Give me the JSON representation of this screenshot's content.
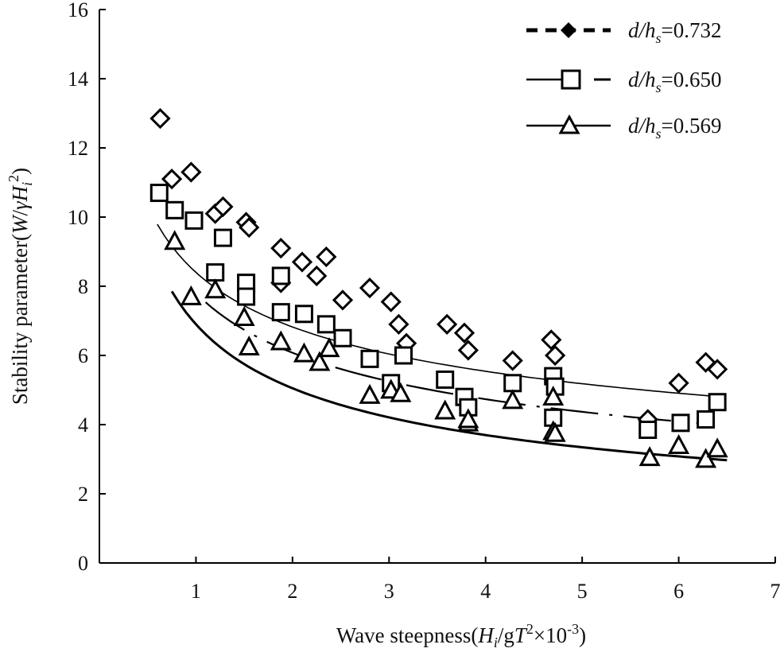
{
  "chart_data": {
    "type": "scatter",
    "xlabel": {
      "prefix": "Wave steepness(",
      "H": "H",
      "i": "i",
      "mid": "/g",
      "T": "T",
      "sq": "2",
      "times": "×10",
      "exp": "-3",
      "close": ")"
    },
    "ylabel": {
      "prefix": "Stability parameter(",
      "W": "W",
      "slash": "/",
      "gamma": "γ",
      "H": "H",
      "i": "i",
      "sq": "2",
      "close": ")"
    },
    "xlim": [
      0,
      7
    ],
    "ylim": [
      0,
      16
    ],
    "xticks": [
      "1",
      "2",
      "3",
      "4",
      "5",
      "6",
      "7"
    ],
    "yticks": [
      "0",
      "2",
      "4",
      "6",
      "8",
      "10",
      "12",
      "14",
      "16"
    ],
    "legend": [
      {
        "prefix": "d/h",
        "sub": "s",
        "value": "=0.732",
        "marker": "diamond",
        "line": "dashed-thick"
      },
      {
        "prefix": "d/h",
        "sub": "s",
        "value": "=0.650",
        "marker": "square",
        "line": "dash-gap"
      },
      {
        "prefix": "d/h",
        "sub": "s",
        "value": "=0.569",
        "marker": "triangle",
        "line": "solid"
      }
    ],
    "series": [
      {
        "name": "d/hs=0.732",
        "marker": "diamond",
        "points": [
          [
            0.63,
            12.85
          ],
          [
            0.75,
            11.1
          ],
          [
            0.95,
            11.3
          ],
          [
            1.2,
            10.1
          ],
          [
            1.28,
            10.3
          ],
          [
            1.52,
            9.85
          ],
          [
            1.55,
            9.7
          ],
          [
            1.88,
            9.1
          ],
          [
            1.88,
            8.1
          ],
          [
            2.1,
            8.7
          ],
          [
            2.25,
            8.3
          ],
          [
            2.35,
            8.85
          ],
          [
            2.52,
            7.6
          ],
          [
            2.8,
            7.95
          ],
          [
            3.02,
            7.55
          ],
          [
            3.1,
            6.9
          ],
          [
            3.18,
            6.35
          ],
          [
            3.6,
            6.9
          ],
          [
            3.78,
            6.65
          ],
          [
            3.82,
            6.15
          ],
          [
            4.28,
            5.85
          ],
          [
            4.68,
            6.45
          ],
          [
            4.72,
            6.0
          ],
          [
            6.0,
            5.2
          ],
          [
            6.28,
            5.8
          ],
          [
            6.4,
            5.6
          ],
          [
            5.68,
            4.15
          ]
        ],
        "fit": {
          "a": 8.4,
          "b": -0.3,
          "x_range": [
            0.6,
            6.4
          ]
        }
      },
      {
        "name": "d/hs=0.650",
        "marker": "square",
        "points": [
          [
            0.62,
            10.7
          ],
          [
            0.78,
            10.2
          ],
          [
            0.98,
            9.9
          ],
          [
            1.2,
            8.4
          ],
          [
            1.28,
            9.4
          ],
          [
            1.52,
            8.1
          ],
          [
            1.52,
            7.7
          ],
          [
            1.88,
            8.3
          ],
          [
            1.88,
            7.25
          ],
          [
            2.12,
            7.2
          ],
          [
            2.35,
            6.9
          ],
          [
            2.52,
            6.5
          ],
          [
            2.8,
            5.9
          ],
          [
            3.02,
            5.2
          ],
          [
            3.15,
            6.0
          ],
          [
            3.58,
            5.3
          ],
          [
            3.78,
            4.8
          ],
          [
            3.82,
            4.5
          ],
          [
            4.28,
            5.2
          ],
          [
            4.7,
            5.4
          ],
          [
            4.72,
            5.1
          ],
          [
            4.7,
            4.2
          ],
          [
            5.68,
            3.85
          ],
          [
            6.02,
            4.05
          ],
          [
            6.28,
            4.15
          ],
          [
            6.4,
            4.65
          ]
        ],
        "fit": {
          "a": 7.8,
          "b": -0.36,
          "x_range": [
            1.1,
            6.3
          ]
        }
      },
      {
        "name": "d/hs=0.569",
        "marker": "triangle",
        "points": [
          [
            0.78,
            9.3
          ],
          [
            0.95,
            7.7
          ],
          [
            1.2,
            7.9
          ],
          [
            1.5,
            7.1
          ],
          [
            1.55,
            6.25
          ],
          [
            1.88,
            6.4
          ],
          [
            2.12,
            6.05
          ],
          [
            2.28,
            5.8
          ],
          [
            2.38,
            6.2
          ],
          [
            2.8,
            4.85
          ],
          [
            3.02,
            5.0
          ],
          [
            3.12,
            4.9
          ],
          [
            3.58,
            4.4
          ],
          [
            3.82,
            4.05
          ],
          [
            3.82,
            4.15
          ],
          [
            4.28,
            4.7
          ],
          [
            4.7,
            4.8
          ],
          [
            4.7,
            3.8
          ],
          [
            4.72,
            3.75
          ],
          [
            5.7,
            3.05
          ],
          [
            6.0,
            3.4
          ],
          [
            6.28,
            3.0
          ],
          [
            6.4,
            3.3
          ]
        ],
        "fit": {
          "a": 6.9,
          "b": -0.45,
          "x_range": [
            0.75,
            6.5
          ]
        }
      }
    ]
  }
}
